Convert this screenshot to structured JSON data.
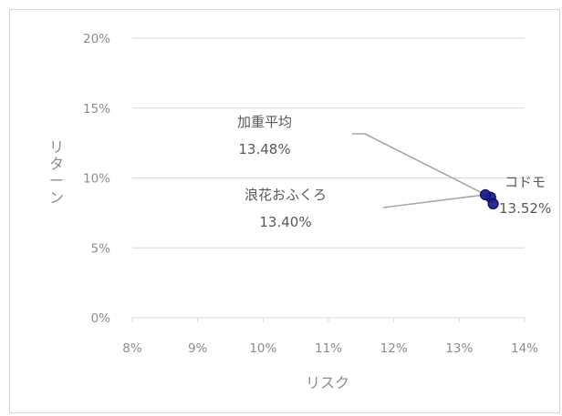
{
  "chart_data": {
    "type": "scatter",
    "xlabel": "リスク",
    "ylabel": "リターン",
    "xlim": [
      0.08,
      0.14
    ],
    "ylim": [
      0.0,
      0.2
    ],
    "x_ticks": [
      "8%",
      "9%",
      "10%",
      "11%",
      "12%",
      "13%",
      "14%"
    ],
    "y_ticks": [
      "0%",
      "5%",
      "10%",
      "15%",
      "20%"
    ],
    "grid": "horizontal",
    "points": [
      {
        "name": "加重平均",
        "label": "13.48%",
        "x": 0.1348,
        "y": 0.0862
      },
      {
        "name": "浪花おふくろ",
        "label": "13.40%",
        "x": 0.134,
        "y": 0.088
      },
      {
        "name": "コドモ",
        "label": "13.52%",
        "x": 0.1352,
        "y": 0.0815
      }
    ],
    "colors": {
      "marker_fill": "#1f1f8f",
      "marker_stroke": "#000060",
      "leader": "#a6a6a6",
      "grid": "#d9d9d9",
      "tick_text": "#8c8c8c",
      "label_text": "#595959"
    }
  }
}
